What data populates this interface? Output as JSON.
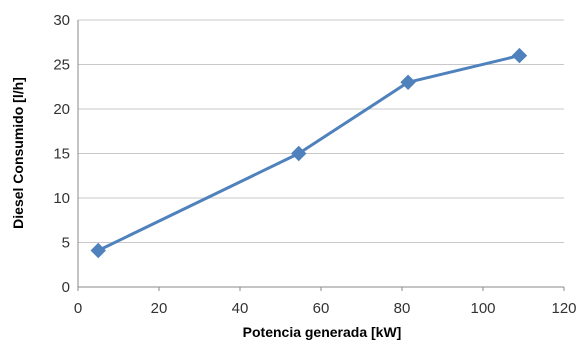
{
  "chart_data": {
    "type": "line",
    "title": "",
    "xlabel": "Potencia generada [kW]",
    "ylabel": "Diesel Consumido [l/h]",
    "xlim": [
      0,
      120
    ],
    "ylim": [
      0,
      30
    ],
    "x_ticks": [
      "0",
      "20",
      "40",
      "60",
      "80",
      "100",
      "120"
    ],
    "y_ticks": [
      "0",
      "5",
      "10",
      "15",
      "20",
      "25",
      "30"
    ],
    "grid": "horizontal",
    "legend": "none",
    "series": [
      {
        "marker": "diamond",
        "color": "#4f81bd",
        "points": [
          {
            "x": 5,
            "y": 4.1
          },
          {
            "x": 54.5,
            "y": 15
          },
          {
            "x": 81.5,
            "y": 23
          },
          {
            "x": 109,
            "y": 26
          }
        ]
      }
    ]
  }
}
